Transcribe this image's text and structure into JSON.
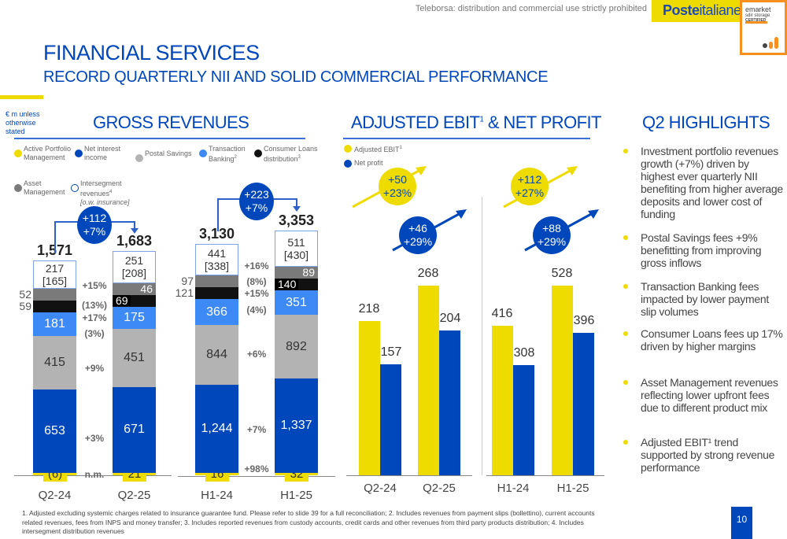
{
  "header": {
    "teleborsa": "Teleborsa: distribution and commercial use strictly prohibited",
    "logo_bold": "Poste",
    "logo_light": "italiane",
    "emarket": {
      "line1": "emarket",
      "line2": "sdir storage",
      "line3": "CERTIFIED"
    }
  },
  "title": "FINANCIAL SERVICES",
  "subtitle": "RECORD QUARTERLY NII AND SOLID COMMERCIAL PERFORMANCE",
  "unit": "€ m unless otherwise stated",
  "gross": {
    "heading": "GROSS REVENUES",
    "legend": [
      {
        "label": "Active Portfolio Management",
        "color": "#eedc00"
      },
      {
        "label": "Net interest income",
        "color": "#0047bb"
      },
      {
        "label": "Postal Savings",
        "color": "#b3b3b3"
      },
      {
        "label": "Transaction Banking",
        "sup": "2",
        "color": "#3d8af7"
      },
      {
        "label": "Consumer Loans distribution",
        "sup": "3",
        "color": "#111111"
      },
      {
        "label": "Asset Management",
        "color": "#7a7a7a"
      },
      {
        "label": "Intersegment revenues",
        "sup": "4",
        "note": "[o.w. insurance]",
        "color": "#ffffff"
      }
    ],
    "bars": [
      {
        "period": "Q2-24",
        "total": "1,571",
        "apm": "(6)",
        "nii": "653",
        "ps": "415",
        "tb": "181",
        "cl": "59",
        "am": "52",
        "inter": "217",
        "ins": "[165]"
      },
      {
        "period": "Q2-25",
        "total": "1,683",
        "apm": "21",
        "nii": "671",
        "ps": "451",
        "tb": "175",
        "cl": "69",
        "am": "46",
        "inter": "251",
        "ins": "[208]"
      },
      {
        "period": "H1-24",
        "total": "3,130",
        "apm": "16",
        "nii": "1,244",
        "ps": "844",
        "tb": "366",
        "cl": "121",
        "am": "97",
        "inter": "441",
        "ins": "[338]"
      },
      {
        "period": "H1-25",
        "total": "3,353",
        "apm": "32",
        "nii": "1,337",
        "ps": "892",
        "tb": "351",
        "cl": "140",
        "am": "89",
        "inter": "511",
        "ins": "[430]"
      }
    ],
    "values": [
      [
        -6,
        653,
        415,
        181,
        59,
        52,
        217
      ],
      [
        21,
        671,
        451,
        175,
        69,
        46,
        251
      ],
      [
        16,
        1244,
        844,
        366,
        121,
        97,
        441
      ],
      [
        32,
        1337,
        892,
        351,
        140,
        89,
        511
      ]
    ],
    "growth_q": [
      "+15%",
      "(13%)",
      "+17%",
      "(3%)",
      "+9%",
      "+3%",
      "n.m."
    ],
    "growth_h": [
      "+16%",
      "(8%)",
      "+15%",
      "(4%)",
      "+6%",
      "+7%",
      "+98%"
    ],
    "bubble_q": [
      "+112",
      "+7%"
    ],
    "bubble_h": [
      "+223",
      "+7%"
    ]
  },
  "ebit": {
    "heading": "ADJUSTED EBIT",
    "heading_sup": "1",
    "heading_rest": " & NET PROFIT",
    "legend": [
      {
        "label": "Adjusted EBIT",
        "sup": "1",
        "color": "#eedc00"
      },
      {
        "label": "Net profit",
        "color": "#0047bb"
      }
    ],
    "groups": [
      {
        "period": "Q2-24",
        "ebit": 218,
        "np": 157
      },
      {
        "period": "Q2-25",
        "ebit": 268,
        "np": 204
      },
      {
        "period": "H1-24",
        "ebit": 416,
        "np": 308
      },
      {
        "period": "H1-25",
        "ebit": 528,
        "np": 396
      }
    ],
    "bubbles": [
      [
        "+50",
        "+23%"
      ],
      [
        "+46",
        "+29%"
      ],
      [
        "+112",
        "+27%"
      ],
      [
        "+88",
        "+29%"
      ]
    ]
  },
  "highlights": {
    "heading": "Q2 HIGHLIGHTS",
    "items": [
      "Investment portfolio revenues growth (+7%) driven by highest ever quarterly NII benefiting from higher average deposits and lower cost of funding",
      "Postal Savings fees +9% benefitting from improving gross inflows",
      "Transaction Banking fees impacted by lower payment slip volumes",
      "Consumer Loans fees up 17% driven by higher margins",
      "Asset Management revenues reflecting lower upfront fees due to different product mix",
      "Adjusted EBIT¹ trend supported by strong revenue performance"
    ]
  },
  "footnote": "1. Adjusted excluding systemic charges related to insurance guarantee fund. Please refer to slide 39 for a full reconciliation; 2. Includes revenues from payment slips (bollettino), current accounts related revenues, fees from INPS and money transfer; 3. Includes reported revenues from custody accounts, credit cards and other revenues from third party products distribution; 4. Includes intersegment distribution revenues",
  "page_number": "10"
}
